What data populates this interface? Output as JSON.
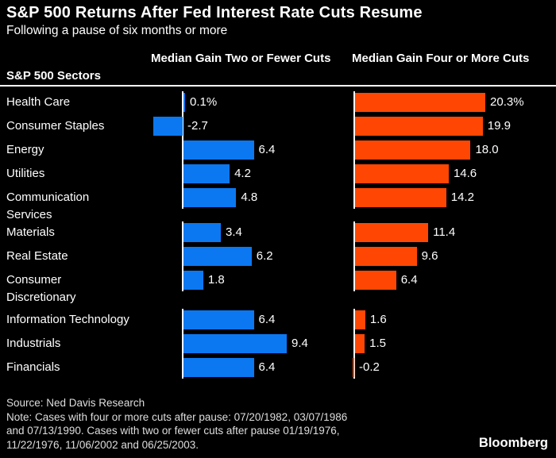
{
  "title": "S&P 500 Returns After Fed Interest Rate Cuts Resume",
  "subtitle": "Following a pause of six months or more",
  "table": {
    "sectors_header": "S&P 500 Sectors",
    "col1_header": "Median Gain Two or Fewer Cuts",
    "col2_header": "Median Gain Four or More Cuts"
  },
  "colors": {
    "background": "#000000",
    "text": "#ffffff",
    "blue": "#0b78f2",
    "orange": "#ff4703",
    "axis": "#ffffff"
  },
  "chart_data": {
    "type": "bar",
    "orientation": "horizontal",
    "title": "S&P 500 Returns After Fed Interest Rate Cuts Resume",
    "subtitle": "Following a pause of six months or more",
    "categories": [
      "Health Care",
      "Consumer Staples",
      "Energy",
      "Utilities",
      "Communication Services",
      "Materials",
      "Real Estate",
      "Consumer Discretionary",
      "Information Technology",
      "Industrials",
      "Financials"
    ],
    "groups": [
      [
        0,
        1,
        2,
        3,
        4
      ],
      [
        5,
        6,
        7
      ],
      [
        8,
        9,
        10
      ]
    ],
    "unit": "%",
    "series": [
      {
        "name": "Median Gain Two or Fewer Cuts",
        "color_key": "blue",
        "values": [
          0.1,
          -2.7,
          6.4,
          4.2,
          4.8,
          3.4,
          6.2,
          1.8,
          6.4,
          9.4,
          6.4
        ],
        "display": [
          "0.1%",
          "-2.7",
          "6.4",
          "4.2",
          "4.8",
          "3.4",
          "6.2",
          "1.8",
          "6.4",
          "9.4",
          "6.4"
        ]
      },
      {
        "name": "Median Gain Four or More Cuts",
        "color_key": "orange",
        "values": [
          20.3,
          19.9,
          18.0,
          14.6,
          14.2,
          11.4,
          9.6,
          6.4,
          1.6,
          1.5,
          -0.2
        ],
        "display": [
          "20.3%",
          "19.9",
          "18.0",
          "14.6",
          "14.2",
          "11.4",
          "9.6",
          "6.4",
          "1.6",
          "1.5",
          "-0.2"
        ]
      }
    ]
  },
  "footer": {
    "source": "Source: Ned Davis Research",
    "note_lines": [
      "Note: Cases with four or more cuts after pause: 07/20/1982, 03/07/1986",
      "and 07/13/1990. Cases with two or fewer cuts after pause 01/19/1976,",
      "11/22/1976, 11/06/2002 and 06/25/2003."
    ],
    "brand": "Bloomberg"
  }
}
